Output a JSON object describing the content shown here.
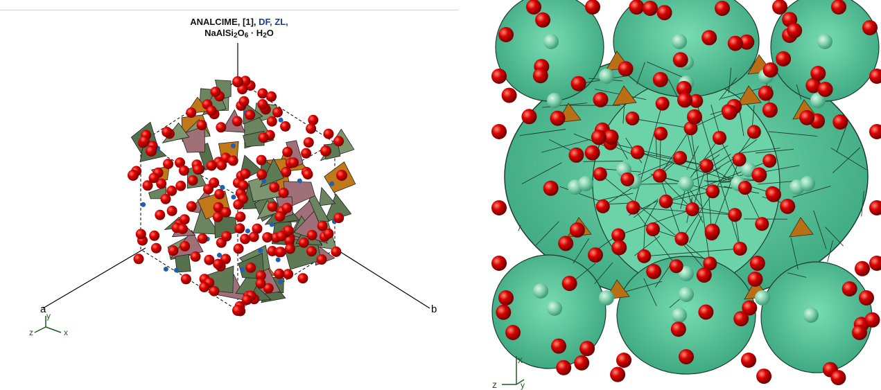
{
  "left_view": {
    "title": {
      "mineral": "ANALCIME,",
      "ref": "[1],",
      "code_df": "DF,",
      "code_zl": "ZL,",
      "formula_parts": [
        "NaAlSi",
        "2",
        "O",
        "6",
        " · H",
        "2",
        "O"
      ]
    },
    "axis_labels": {
      "a": "a",
      "b": "b"
    },
    "orientation_triad": {
      "vertical": "y",
      "left": "z",
      "right": "x"
    },
    "colors": {
      "oxygen": "#dd0000",
      "tetrahedra_dark": "#5f7a55",
      "tetrahedra_mauve": "#a07078",
      "tetrahedra_orange": "#c07818",
      "sodium": "#2060b0"
    }
  },
  "right_view": {
    "orientation_triad": {
      "vertical": "x",
      "left": "z",
      "right": "y"
    },
    "colors": {
      "cage": "#5cc79c",
      "oxygen": "#d40000",
      "water": "#86d4b0",
      "aluminum": "#b86f15"
    }
  }
}
